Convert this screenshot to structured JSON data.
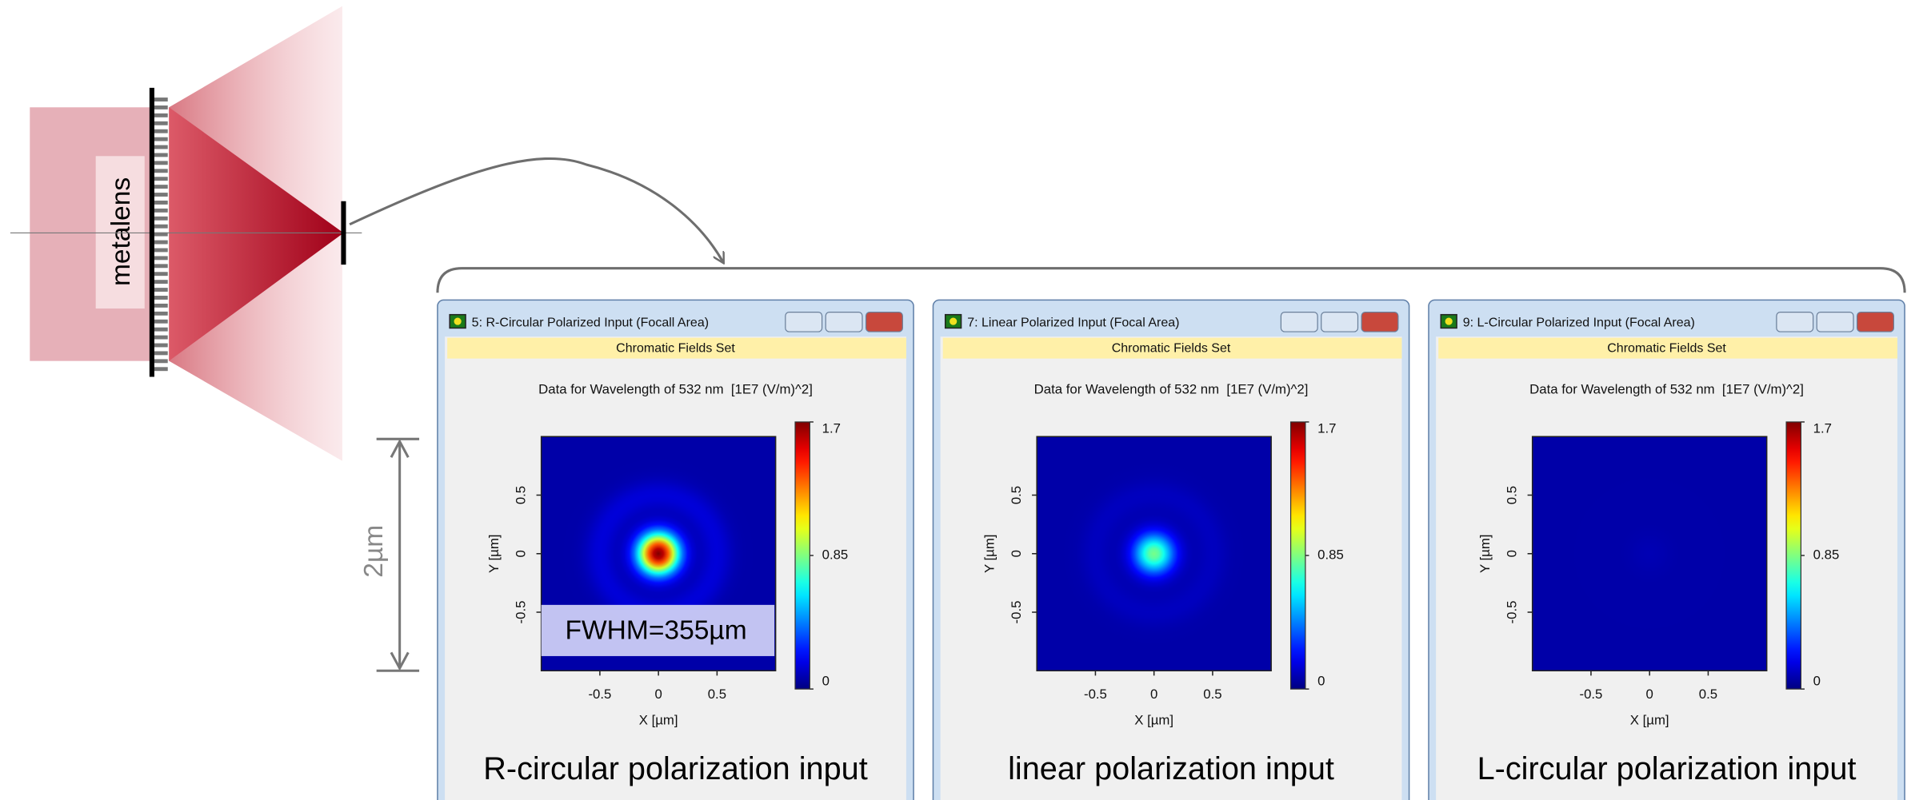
{
  "diagram": {
    "lens_label": "metalens",
    "dimension_label": "2µm"
  },
  "windows": [
    {
      "title": "5: R-Circular Polarized Input (Focall Area)",
      "header": "Chromatic Fields Set",
      "plot_title": "Data for Wavelength of 532 nm  [1E7 (V/m)^2]",
      "x_label": "X [µm]",
      "y_label": "Y [µm]",
      "xlim": [
        -1,
        1
      ],
      "ylim": [
        -1,
        1
      ],
      "xticks": [
        -0.5,
        0,
        0.5
      ],
      "yticks": [
        -0.5,
        0,
        0.5
      ],
      "colorbar_lim": [
        0,
        1.7
      ],
      "colorbar_ticks": [
        0,
        0.85,
        1.7
      ],
      "peak": 1.7,
      "annotation": "FWHM=355µm",
      "caption": "R-circular polarization input"
    },
    {
      "title": "7: Linear Polarized Input (Focal Area)",
      "header": "Chromatic Fields Set",
      "plot_title": "Data for Wavelength of 532 nm  [1E7 (V/m)^2]",
      "x_label": "X [µm]",
      "y_label": "Y [µm]",
      "xlim": [
        -1,
        1
      ],
      "ylim": [
        -1,
        1
      ],
      "xticks": [
        -0.5,
        0,
        0.5
      ],
      "yticks": [
        -0.5,
        0,
        0.5
      ],
      "colorbar_lim": [
        0,
        1.7
      ],
      "colorbar_ticks": [
        0,
        0.85,
        1.7
      ],
      "peak": 0.8,
      "caption": "linear polarization input"
    },
    {
      "title": "9: L-Circular Polarized Input (Focal Area)",
      "header": "Chromatic Fields Set",
      "plot_title": "Data for Wavelength of 532 nm  [1E7 (V/m)^2]",
      "x_label": "X [µm]",
      "y_label": "Y [µm]",
      "xlim": [
        -1,
        1
      ],
      "ylim": [
        -1,
        1
      ],
      "xticks": [
        -0.5,
        0,
        0.5
      ],
      "yticks": [
        -0.5,
        0,
        0.5
      ],
      "colorbar_lim": [
        0,
        1.7
      ],
      "colorbar_ticks": [
        0,
        0.85,
        1.7
      ],
      "peak": 0.02,
      "caption": "L-circular polarization input"
    }
  ]
}
